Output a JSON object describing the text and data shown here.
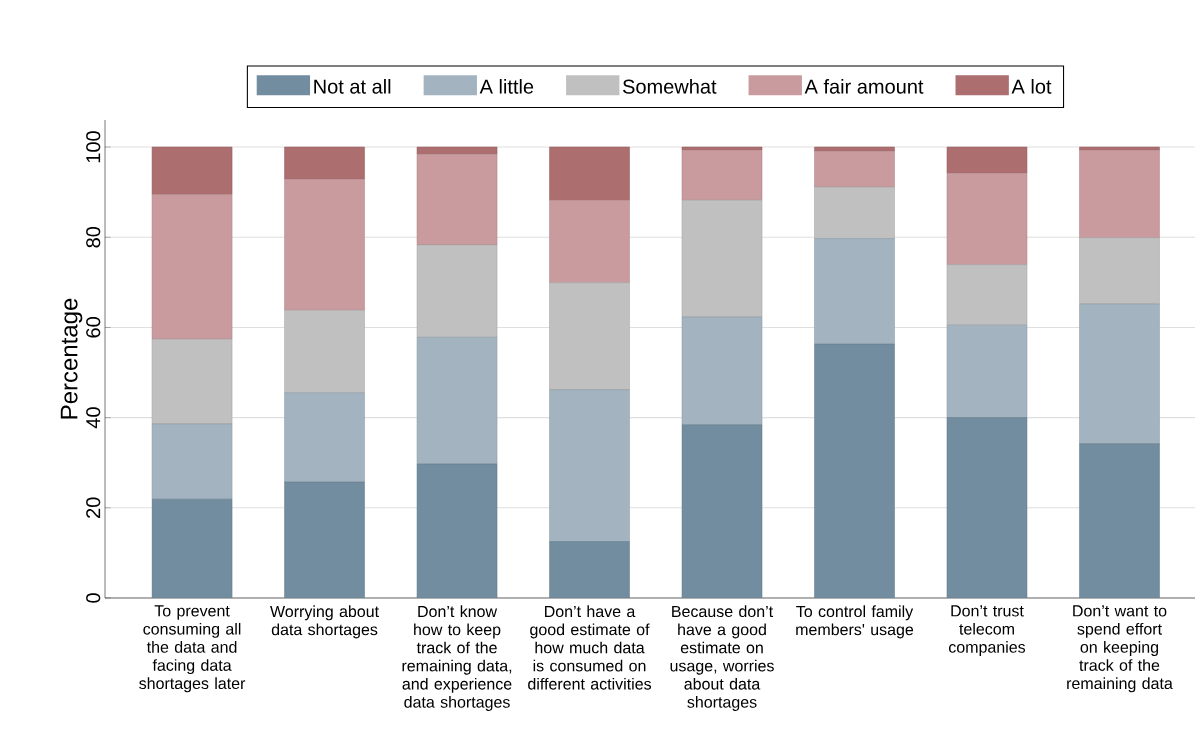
{
  "chart_data": {
    "type": "bar",
    "stacked": true,
    "ylabel": "Percentage",
    "categories": [
      "To prevent consuming all the data and facing data shortages later",
      "Worrying about data shortages",
      "Don’t know how to keep track of the remaining data, and experience data shortages",
      "Don’t have a good estimate of how much data is consumed on different activities",
      "Because don’t have a good estimate on usage, worries about data shortages",
      "To control family members' usage",
      "Don’t trust telecom companies",
      "Don’t want to spend effort on keeping track of the remaining data"
    ],
    "series": [
      {
        "name": "Not at all",
        "color": "#738da0",
        "values": [
          21.9,
          25.7,
          29.7,
          12.5,
          38.4,
          56.3,
          40.0,
          34.2
        ]
      },
      {
        "name": "A little",
        "color": "#a3b4c0",
        "values": [
          16.7,
          19.8,
          28.1,
          33.7,
          23.9,
          23.4,
          20.5,
          31.0
        ]
      },
      {
        "name": "Somewhat",
        "color": "#c0c0c0",
        "values": [
          18.8,
          18.3,
          20.5,
          23.7,
          25.9,
          11.4,
          13.4,
          14.7
        ]
      },
      {
        "name": "A fair amount",
        "color": "#c99b9e",
        "values": [
          32.1,
          29.1,
          20.1,
          18.3,
          11.1,
          8.0,
          20.3,
          19.4
        ]
      },
      {
        "name": "A lot",
        "color": "#ad6e70",
        "values": [
          10.5,
          7.1,
          1.6,
          11.8,
          0.7,
          0.9,
          5.8,
          0.7
        ]
      }
    ],
    "ylim": [
      0,
      106
    ],
    "yticks": [
      0,
      20,
      40,
      60,
      80,
      100
    ],
    "grid": "y",
    "legend": "top"
  }
}
